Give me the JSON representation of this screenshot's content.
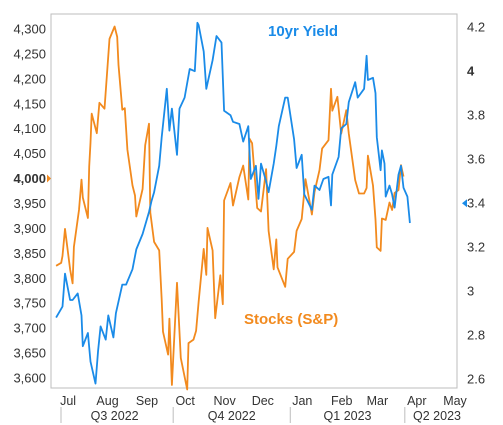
{
  "chart_data": {
    "type": "line",
    "x_axis": {
      "months": [
        "Jul",
        "Aug",
        "Sep",
        "Oct",
        "Nov",
        "Dec",
        "Jan",
        "Feb",
        "Mar",
        "Apr",
        "May"
      ],
      "quarters": [
        "Q3 2022",
        "Q4 2022",
        "Q1 2023",
        "Q2 2023"
      ]
    },
    "y_left": {
      "ylim": [
        3580,
        4330
      ],
      "ticks": [
        "3,600",
        "3,650",
        "3,700",
        "3,750",
        "3,800",
        "3,850",
        "3,900",
        "3,950",
        "4,000",
        "4,050",
        "4,100",
        "4,150",
        "4,200",
        "4,250",
        "4,300"
      ],
      "tick_values": [
        3600,
        3650,
        3700,
        3750,
        3800,
        3850,
        3900,
        3950,
        4000,
        4050,
        4100,
        4150,
        4200,
        4250,
        4300
      ],
      "highlight": 4000
    },
    "y_right": {
      "ylim": [
        2.56,
        4.26
      ],
      "ticks": [
        "2.6",
        "2.8",
        "3",
        "3.2",
        "3.4",
        "3.6",
        "3.8",
        "4",
        "4.2"
      ],
      "tick_values": [
        2.6,
        2.8,
        3.0,
        3.2,
        3.4,
        3.6,
        3.8,
        4.0,
        4.2
      ],
      "highlight": 3.4
    },
    "series": [
      {
        "name": "Stocks (S&P)",
        "axis": "left",
        "color": "#F28A1E",
        "points": [
          [
            "2022-07-01",
            3825
          ],
          [
            "2022-07-05",
            3831
          ],
          [
            "2022-07-06",
            3845
          ],
          [
            "2022-07-08",
            3899
          ],
          [
            "2022-07-12",
            3818
          ],
          [
            "2022-07-14",
            3790
          ],
          [
            "2022-07-15",
            3863
          ],
          [
            "2022-07-19",
            3937
          ],
          [
            "2022-07-21",
            3998
          ],
          [
            "2022-07-22",
            3962
          ],
          [
            "2022-07-26",
            3921
          ],
          [
            "2022-07-27",
            4024
          ],
          [
            "2022-07-28",
            4072
          ],
          [
            "2022-07-29",
            4130
          ],
          [
            "2022-08-02",
            4091
          ],
          [
            "2022-08-04",
            4152
          ],
          [
            "2022-08-08",
            4140
          ],
          [
            "2022-08-10",
            4210
          ],
          [
            "2022-08-12",
            4280
          ],
          [
            "2022-08-16",
            4305
          ],
          [
            "2022-08-18",
            4284
          ],
          [
            "2022-08-19",
            4228
          ],
          [
            "2022-08-22",
            4138
          ],
          [
            "2022-08-24",
            4141
          ],
          [
            "2022-08-26",
            4058
          ],
          [
            "2022-08-30",
            3986
          ],
          [
            "2022-09-01",
            3966
          ],
          [
            "2022-09-02",
            3924
          ],
          [
            "2022-09-07",
            3979
          ],
          [
            "2022-09-09",
            4067
          ],
          [
            "2022-09-12",
            4110
          ],
          [
            "2022-09-13",
            3932
          ],
          [
            "2022-09-16",
            3873
          ],
          [
            "2022-09-20",
            3856
          ],
          [
            "2022-09-22",
            3757
          ],
          [
            "2022-09-23",
            3693
          ],
          [
            "2022-09-27",
            3647
          ],
          [
            "2022-09-28",
            3719
          ],
          [
            "2022-09-30",
            3586
          ],
          [
            "2022-10-04",
            3791
          ],
          [
            "2022-10-07",
            3640
          ],
          [
            "2022-10-12",
            3577
          ],
          [
            "2022-10-13",
            3670
          ],
          [
            "2022-10-17",
            3677
          ],
          [
            "2022-10-19",
            3695
          ],
          [
            "2022-10-21",
            3752
          ],
          [
            "2022-10-25",
            3859
          ],
          [
            "2022-10-27",
            3807
          ],
          [
            "2022-10-28",
            3901
          ],
          [
            "2022-11-01",
            3856
          ],
          [
            "2022-11-03",
            3720
          ],
          [
            "2022-11-07",
            3806
          ],
          [
            "2022-11-09",
            3748
          ],
          [
            "2022-11-10",
            3956
          ],
          [
            "2022-11-15",
            3991
          ],
          [
            "2022-11-17",
            3946
          ],
          [
            "2022-11-22",
            4003
          ],
          [
            "2022-11-25",
            4026
          ],
          [
            "2022-11-29",
            3958
          ],
          [
            "2022-11-30",
            4080
          ],
          [
            "2022-12-02",
            4071
          ],
          [
            "2022-12-06",
            3941
          ],
          [
            "2022-12-09",
            3934
          ],
          [
            "2022-12-13",
            4019
          ],
          [
            "2022-12-15",
            3895
          ],
          [
            "2022-12-19",
            3818
          ],
          [
            "2022-12-21",
            3878
          ],
          [
            "2022-12-22",
            3822
          ],
          [
            "2022-12-28",
            3783
          ],
          [
            "2022-12-30",
            3839
          ],
          [
            "2023-01-04",
            3853
          ],
          [
            "2023-01-06",
            3895
          ],
          [
            "2023-01-10",
            3919
          ],
          [
            "2023-01-13",
            3999
          ],
          [
            "2023-01-18",
            3928
          ],
          [
            "2023-01-20",
            3973
          ],
          [
            "2023-01-24",
            4017
          ],
          [
            "2023-01-26",
            4060
          ],
          [
            "2023-01-31",
            4077
          ],
          [
            "2023-02-02",
            4180
          ],
          [
            "2023-02-03",
            4136
          ],
          [
            "2023-02-07",
            4164
          ],
          [
            "2023-02-10",
            4090
          ],
          [
            "2023-02-14",
            4137
          ],
          [
            "2023-02-16",
            4090
          ],
          [
            "2023-02-21",
            3997
          ],
          [
            "2023-02-24",
            3970
          ],
          [
            "2023-02-28",
            3970
          ],
          [
            "2023-03-02",
            3981
          ],
          [
            "2023-03-03",
            4046
          ],
          [
            "2023-03-07",
            3986
          ],
          [
            "2023-03-09",
            3918
          ],
          [
            "2023-03-10",
            3862
          ],
          [
            "2023-03-13",
            3855
          ],
          [
            "2023-03-14",
            3920
          ],
          [
            "2023-03-17",
            3917
          ],
          [
            "2023-03-20",
            3952
          ],
          [
            "2023-03-22",
            3937
          ],
          [
            "2023-03-24",
            3971
          ],
          [
            "2023-03-27",
            3977
          ],
          [
            "2023-03-29",
            4027
          ],
          [
            "2023-03-31",
            4004
          ]
        ]
      },
      {
        "name": "10yr Yield",
        "axis": "right",
        "color": "#1A8BE8",
        "points": [
          [
            "2022-07-01",
            2.88
          ],
          [
            "2022-07-06",
            2.93
          ],
          [
            "2022-07-08",
            3.08
          ],
          [
            "2022-07-12",
            2.96
          ],
          [
            "2022-07-14",
            2.96
          ],
          [
            "2022-07-18",
            2.99
          ],
          [
            "2022-07-21",
            2.89
          ],
          [
            "2022-07-22",
            2.75
          ],
          [
            "2022-07-26",
            2.81
          ],
          [
            "2022-07-28",
            2.68
          ],
          [
            "2022-08-01",
            2.58
          ],
          [
            "2022-08-03",
            2.73
          ],
          [
            "2022-08-05",
            2.84
          ],
          [
            "2022-08-09",
            2.78
          ],
          [
            "2022-08-11",
            2.89
          ],
          [
            "2022-08-15",
            2.79
          ],
          [
            "2022-08-17",
            2.9
          ],
          [
            "2022-08-22",
            3.03
          ],
          [
            "2022-08-25",
            3.03
          ],
          [
            "2022-08-30",
            3.1
          ],
          [
            "2022-09-02",
            3.19
          ],
          [
            "2022-09-07",
            3.26
          ],
          [
            "2022-09-12",
            3.36
          ],
          [
            "2022-09-14",
            3.41
          ],
          [
            "2022-09-16",
            3.45
          ],
          [
            "2022-09-20",
            3.57
          ],
          [
            "2022-09-22",
            3.7
          ],
          [
            "2022-09-26",
            3.92
          ],
          [
            "2022-09-28",
            3.73
          ],
          [
            "2022-09-30",
            3.83
          ],
          [
            "2022-10-04",
            3.62
          ],
          [
            "2022-10-06",
            3.83
          ],
          [
            "2022-10-10",
            3.88
          ],
          [
            "2022-10-14",
            4.01
          ],
          [
            "2022-10-18",
            4.0
          ],
          [
            "2022-10-20",
            4.22
          ],
          [
            "2022-10-21",
            4.21
          ],
          [
            "2022-10-25",
            4.09
          ],
          [
            "2022-10-27",
            3.92
          ],
          [
            "2022-11-01",
            4.05
          ],
          [
            "2022-11-04",
            4.16
          ],
          [
            "2022-11-08",
            4.13
          ],
          [
            "2022-11-10",
            3.82
          ],
          [
            "2022-11-15",
            3.8
          ],
          [
            "2022-11-17",
            3.77
          ],
          [
            "2022-11-22",
            3.76
          ],
          [
            "2022-11-25",
            3.68
          ],
          [
            "2022-11-29",
            3.75
          ],
          [
            "2022-12-01",
            3.51
          ],
          [
            "2022-12-05",
            3.57
          ],
          [
            "2022-12-07",
            3.42
          ],
          [
            "2022-12-09",
            3.58
          ],
          [
            "2022-12-13",
            3.5
          ],
          [
            "2022-12-15",
            3.45
          ],
          [
            "2022-12-19",
            3.58
          ],
          [
            "2022-12-21",
            3.66
          ],
          [
            "2022-12-23",
            3.75
          ],
          [
            "2022-12-28",
            3.88
          ],
          [
            "2022-12-30",
            3.88
          ],
          [
            "2023-01-04",
            3.69
          ],
          [
            "2023-01-06",
            3.56
          ],
          [
            "2023-01-10",
            3.62
          ],
          [
            "2023-01-12",
            3.44
          ],
          [
            "2023-01-18",
            3.37
          ],
          [
            "2023-01-20",
            3.48
          ],
          [
            "2023-01-24",
            3.46
          ],
          [
            "2023-01-27",
            3.51
          ],
          [
            "2023-01-31",
            3.52
          ],
          [
            "2023-02-02",
            3.39
          ],
          [
            "2023-02-03",
            3.53
          ],
          [
            "2023-02-08",
            3.61
          ],
          [
            "2023-02-10",
            3.74
          ],
          [
            "2023-02-14",
            3.76
          ],
          [
            "2023-02-16",
            3.86
          ],
          [
            "2023-02-21",
            3.95
          ],
          [
            "2023-02-23",
            3.88
          ],
          [
            "2023-02-28",
            3.92
          ],
          [
            "2023-03-02",
            4.07
          ],
          [
            "2023-03-03",
            3.96
          ],
          [
            "2023-03-07",
            3.97
          ],
          [
            "2023-03-09",
            3.9
          ],
          [
            "2023-03-10",
            3.7
          ],
          [
            "2023-03-13",
            3.55
          ],
          [
            "2023-03-14",
            3.64
          ],
          [
            "2023-03-16",
            3.58
          ],
          [
            "2023-03-17",
            3.43
          ],
          [
            "2023-03-20",
            3.48
          ],
          [
            "2023-03-22",
            3.44
          ],
          [
            "2023-03-24",
            3.38
          ],
          [
            "2023-03-27",
            3.53
          ],
          [
            "2023-03-29",
            3.57
          ],
          [
            "2023-03-31",
            3.47
          ],
          [
            "2023-04-03",
            3.43
          ],
          [
            "2023-04-05",
            3.31
          ]
        ]
      }
    ],
    "labels": {
      "yield": "10yr Yield",
      "stocks": "Stocks (S&P)"
    }
  }
}
